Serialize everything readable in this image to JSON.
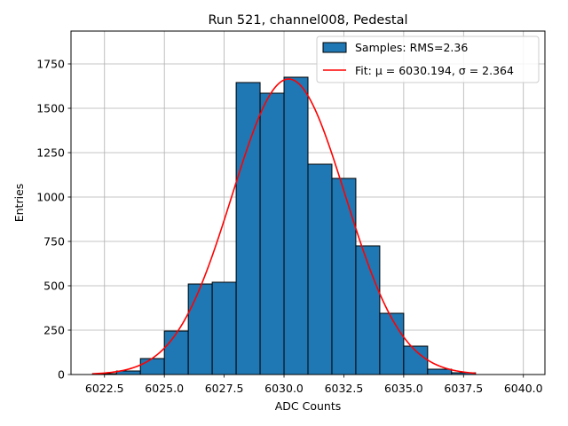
{
  "chart_data": {
    "type": "bar",
    "title": "Run 521, channel008, Pedestal",
    "xlabel": "ADC Counts",
    "ylabel": "Entries",
    "xlim": [
      6021.1,
      6040.9
    ],
    "ylim": [
      0,
      1935
    ],
    "grid": true,
    "legend_position": "top-right",
    "xticks": [
      6022.5,
      6025.0,
      6027.5,
      6030.0,
      6032.5,
      6035.0,
      6037.5,
      6040.0
    ],
    "xtick_labels": [
      "6022.5",
      "6025.0",
      "6027.5",
      "6030.0",
      "6032.5",
      "6035.0",
      "6037.5",
      "6040.0"
    ],
    "yticks": [
      0,
      250,
      500,
      750,
      1000,
      1250,
      1500,
      1750
    ],
    "ytick_labels": [
      "0",
      "250",
      "500",
      "750",
      "1000",
      "1250",
      "1500",
      "1750"
    ],
    "histogram": {
      "name": "Samples: RMS=2.36",
      "color": "#1f77b4",
      "edge_color": "#000000",
      "bin_edges": [
        6022.0,
        6023.0,
        6024.0,
        6025.0,
        6026.0,
        6027.0,
        6028.0,
        6029.0,
        6030.0,
        6031.0,
        6032.0,
        6033.0,
        6034.0,
        6035.0,
        6036.0,
        6037.0,
        6038.0
      ],
      "counts": [
        5,
        20,
        90,
        245,
        510,
        520,
        1645,
        1585,
        1675,
        1185,
        1105,
        725,
        345,
        160,
        30,
        10
      ]
    },
    "fit": {
      "name": "Fit: μ = 6030.194, σ = 2.364",
      "color": "#ff0000",
      "mu": 6030.194,
      "sigma": 2.364,
      "amplitude": 1665,
      "x_range": [
        6022.0,
        6038.0
      ]
    }
  }
}
